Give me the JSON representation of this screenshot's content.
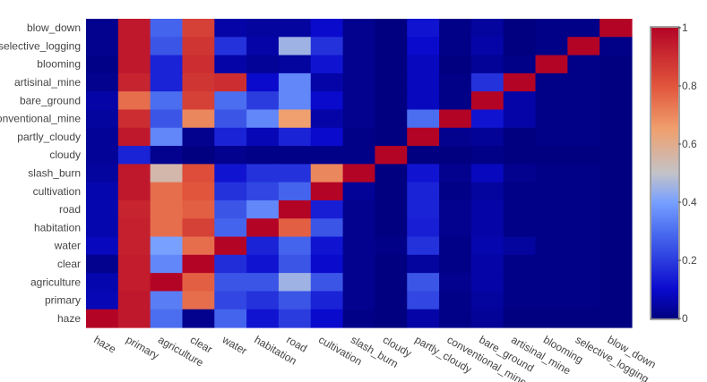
{
  "chart_data": {
    "type": "heatmap",
    "title": "",
    "xlabel": "",
    "ylabel": "",
    "x_categories": [
      "haze",
      "primary",
      "agriculture",
      "clear",
      "water",
      "habitation",
      "road",
      "cultivation",
      "slash_burn",
      "cloudy",
      "partly_cloudy",
      "conventional_mine",
      "bare_ground",
      "artisinal_mine",
      "blooming",
      "selective_logging",
      "blow_down"
    ],
    "y_categories": [
      "blow_down",
      "selective_logging",
      "blooming",
      "artisinal_mine",
      "bare_ground",
      "conventional_mine",
      "partly_cloudy",
      "cloudy",
      "slash_burn",
      "cultivation",
      "road",
      "habitation",
      "water",
      "clear",
      "agriculture",
      "primary",
      "haze"
    ],
    "z": [
      [
        0.02,
        0.95,
        0.28,
        0.85,
        0.05,
        0.04,
        0.04,
        0.1,
        0.02,
        0.0,
        0.12,
        0.01,
        0.04,
        0.0,
        0.01,
        0.01,
        1.0
      ],
      [
        0.02,
        0.95,
        0.25,
        0.88,
        0.18,
        0.05,
        0.45,
        0.18,
        0.02,
        0.0,
        0.1,
        0.01,
        0.05,
        0.0,
        0.01,
        1.0,
        0.01
      ],
      [
        0.01,
        0.95,
        0.15,
        0.9,
        0.05,
        0.03,
        0.04,
        0.12,
        0.02,
        0.0,
        0.08,
        0.0,
        0.03,
        0.01,
        1.0,
        0.01,
        0.0
      ],
      [
        0.02,
        0.92,
        0.15,
        0.88,
        0.9,
        0.1,
        0.35,
        0.05,
        0.02,
        0.0,
        0.08,
        0.01,
        0.18,
        1.0,
        0.01,
        0.01,
        0.0
      ],
      [
        0.05,
        0.75,
        0.3,
        0.85,
        0.3,
        0.2,
        0.35,
        0.1,
        0.02,
        0.0,
        0.08,
        0.01,
        1.0,
        0.05,
        0.01,
        0.01,
        0.0
      ],
      [
        0.04,
        0.9,
        0.25,
        0.7,
        0.25,
        0.35,
        0.65,
        0.05,
        0.02,
        0.0,
        0.3,
        1.0,
        0.12,
        0.05,
        0.01,
        0.01,
        0.0
      ],
      [
        0.03,
        0.95,
        0.35,
        0.02,
        0.15,
        0.07,
        0.15,
        0.1,
        0.01,
        0.0,
        1.0,
        0.02,
        0.03,
        0.0,
        0.01,
        0.01,
        0.0
      ],
      [
        0.03,
        0.15,
        0.02,
        0.0,
        0.02,
        0.01,
        0.01,
        0.01,
        0.01,
        1.0,
        0.0,
        0.0,
        0.01,
        0.0,
        0.0,
        0.0,
        0.0
      ],
      [
        0.04,
        0.95,
        0.55,
        0.82,
        0.12,
        0.18,
        0.18,
        0.7,
        1.0,
        0.0,
        0.12,
        0.02,
        0.08,
        0.02,
        0.01,
        0.01,
        0.0
      ],
      [
        0.06,
        0.95,
        0.75,
        0.8,
        0.18,
        0.22,
        0.28,
        1.0,
        0.03,
        0.0,
        0.15,
        0.01,
        0.04,
        0.01,
        0.01,
        0.01,
        0.0
      ],
      [
        0.06,
        0.92,
        0.75,
        0.78,
        0.25,
        0.35,
        1.0,
        0.14,
        0.02,
        0.0,
        0.15,
        0.02,
        0.05,
        0.01,
        0.01,
        0.01,
        0.0
      ],
      [
        0.06,
        0.93,
        0.75,
        0.85,
        0.28,
        1.0,
        0.78,
        0.25,
        0.02,
        0.0,
        0.14,
        0.02,
        0.05,
        0.01,
        0.01,
        0.01,
        0.0
      ],
      [
        0.08,
        0.93,
        0.4,
        0.75,
        1.0,
        0.15,
        0.28,
        0.12,
        0.02,
        0.01,
        0.18,
        0.01,
        0.06,
        0.04,
        0.01,
        0.01,
        0.0
      ],
      [
        0.02,
        0.94,
        0.35,
        1.0,
        0.17,
        0.12,
        0.25,
        0.1,
        0.02,
        0.0,
        0.04,
        0.01,
        0.05,
        0.01,
        0.01,
        0.01,
        0.0
      ],
      [
        0.06,
        0.94,
        1.0,
        0.78,
        0.25,
        0.25,
        0.45,
        0.25,
        0.02,
        0.0,
        0.25,
        0.02,
        0.05,
        0.01,
        0.01,
        0.01,
        0.0
      ],
      [
        0.07,
        0.95,
        0.33,
        0.75,
        0.22,
        0.18,
        0.25,
        0.15,
        0.02,
        0.0,
        0.22,
        0.01,
        0.04,
        0.01,
        0.01,
        0.01,
        0.0
      ],
      [
        1.0,
        0.95,
        0.3,
        0.02,
        0.28,
        0.12,
        0.2,
        0.1,
        0.01,
        0.0,
        0.05,
        0.01,
        0.03,
        0.0,
        0.0,
        0.0,
        0.0
      ]
    ],
    "zlim": [
      0,
      1
    ],
    "colorscale": "coolwarm",
    "colorbar_ticks": [
      "0",
      "0.2",
      "0.4",
      "0.6",
      "0.8",
      "1"
    ],
    "colorbar_tick_values": [
      0,
      0.2,
      0.4,
      0.6,
      0.8,
      1
    ],
    "legend": "right"
  }
}
